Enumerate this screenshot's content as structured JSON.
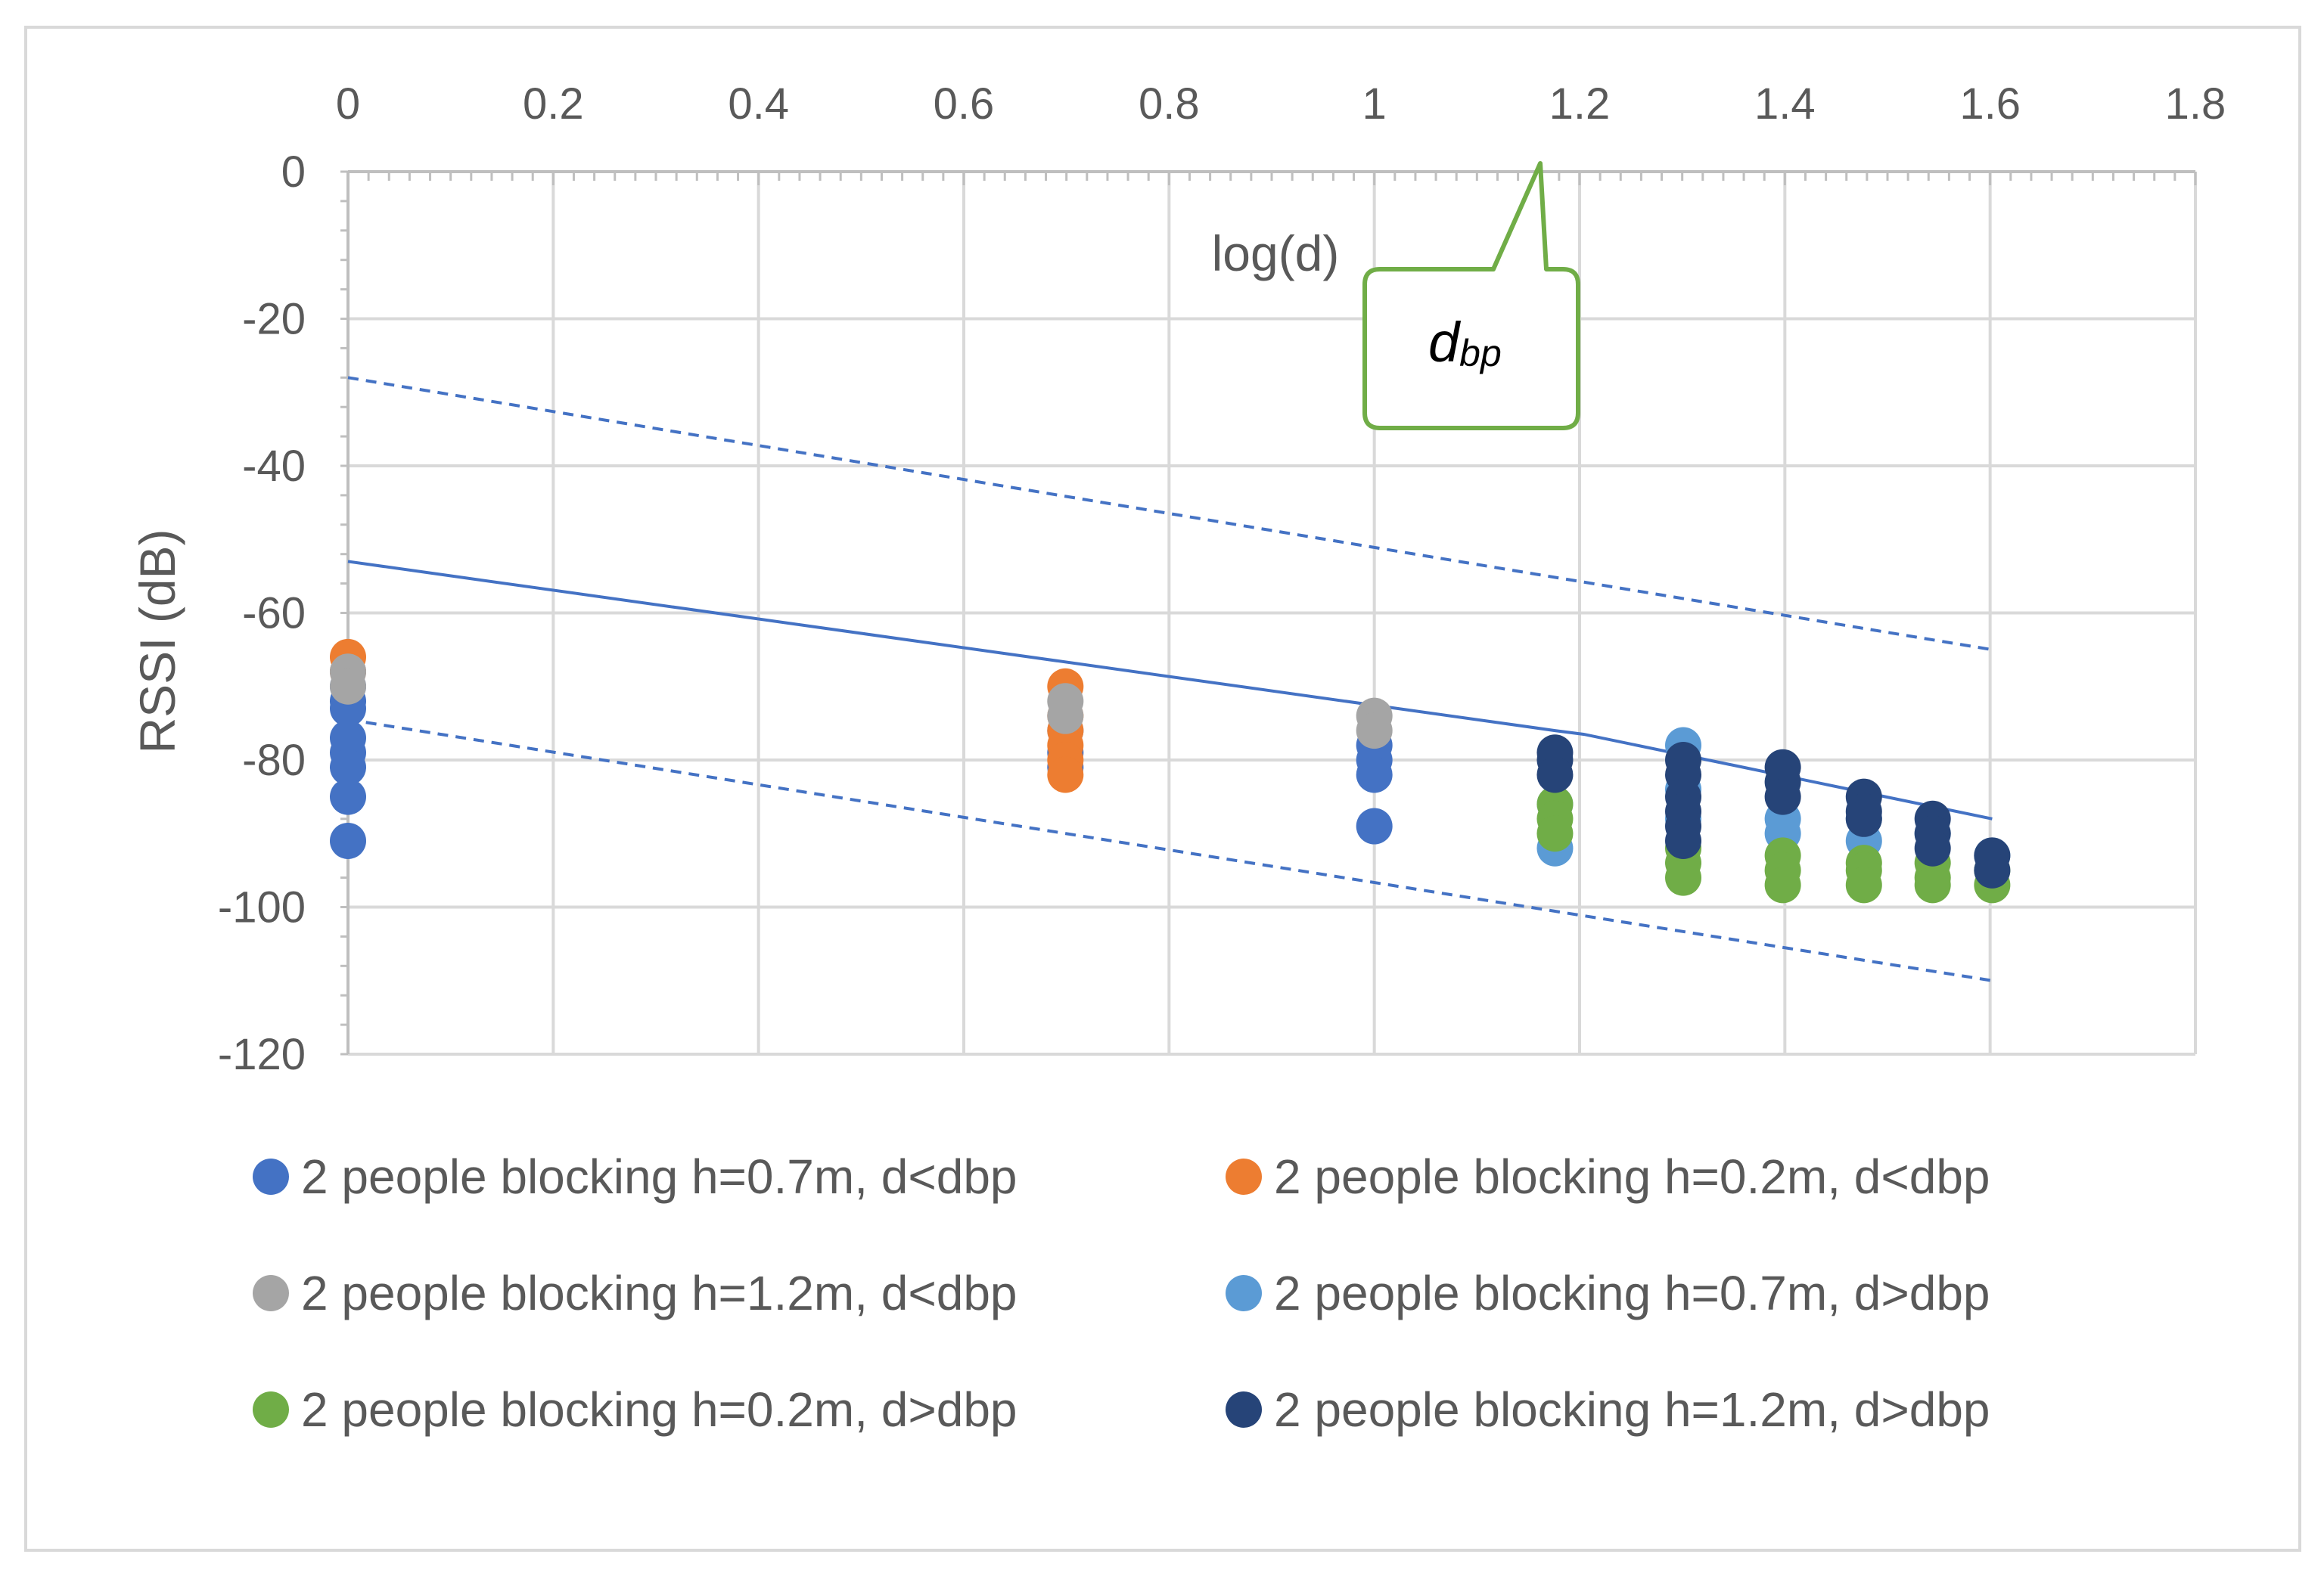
{
  "chart_data": {
    "type": "scatter",
    "xlabel": "log(d)",
    "ylabel": "RSSI (dB)",
    "xlim": [
      0,
      1.8
    ],
    "ylim": [
      -120,
      0
    ],
    "x_ticks": [
      "0",
      "0.2",
      "0.4",
      "0.6",
      "0.8",
      "1",
      "1.2",
      "1.4",
      "1.6",
      "1.8"
    ],
    "y_ticks": [
      "0",
      "-20",
      "-40",
      "-60",
      "-80",
      "-100",
      "-120"
    ],
    "x_tick_values": [
      0,
      0.2,
      0.4,
      0.6,
      0.8,
      1.0,
      1.2,
      1.4,
      1.6,
      1.8
    ],
    "y_tick_values": [
      0,
      -20,
      -40,
      -60,
      -80,
      -100,
      -120
    ],
    "x_axis_position": "top",
    "grid": true,
    "legend_position": "bottom",
    "annotation": {
      "text_main": "d",
      "text_sub": "bp",
      "x": 1.18,
      "y": 0
    },
    "series": [
      {
        "name": "2 people blocking h=0.7m, d<dbp",
        "color": "#4472c4",
        "points": [
          [
            0,
            -68
          ],
          [
            0,
            -70
          ],
          [
            0,
            -72
          ],
          [
            0,
            -73
          ],
          [
            0,
            -77
          ],
          [
            0,
            -79
          ],
          [
            0,
            -81
          ],
          [
            0,
            -85
          ],
          [
            0,
            -91
          ],
          [
            0.699,
            -76
          ],
          [
            0.699,
            -79
          ],
          [
            0.699,
            -81
          ],
          [
            1.0,
            -78
          ],
          [
            1.0,
            -80
          ],
          [
            1.0,
            -82
          ],
          [
            1.0,
            -89
          ]
        ]
      },
      {
        "name": "2 people blocking h=0.2m, d<dbp",
        "color": "#ed7d31",
        "points": [
          [
            0,
            -66
          ],
          [
            0,
            -68
          ],
          [
            0.699,
            -70
          ],
          [
            0.699,
            -74
          ],
          [
            0.699,
            -76
          ],
          [
            0.699,
            -78
          ],
          [
            0.699,
            -80
          ],
          [
            0.699,
            -82
          ]
        ]
      },
      {
        "name": "2 people blocking h=1.2m, d<dbp",
        "color": "#a5a5a5",
        "points": [
          [
            0,
            -68
          ],
          [
            0,
            -70
          ],
          [
            0.699,
            -72
          ],
          [
            0.699,
            -74
          ],
          [
            1.0,
            -74
          ],
          [
            1.0,
            -76
          ]
        ]
      },
      {
        "name": "2 people blocking h=0.7m, d>dbp",
        "color": "#5b9bd5",
        "points": [
          [
            1.176,
            -86
          ],
          [
            1.176,
            -92
          ],
          [
            1.301,
            -78
          ],
          [
            1.301,
            -84
          ],
          [
            1.301,
            -88
          ],
          [
            1.398,
            -88
          ],
          [
            1.398,
            -90
          ],
          [
            1.477,
            -88
          ],
          [
            1.477,
            -91
          ],
          [
            1.544,
            -90
          ],
          [
            1.602,
            -93
          ]
        ]
      },
      {
        "name": "2 people blocking h=0.2m, d>dbp",
        "color": "#70ad47",
        "points": [
          [
            1.176,
            -86
          ],
          [
            1.176,
            -88
          ],
          [
            1.176,
            -90
          ],
          [
            1.301,
            -92
          ],
          [
            1.301,
            -94
          ],
          [
            1.301,
            -96
          ],
          [
            1.398,
            -93
          ],
          [
            1.398,
            -95
          ],
          [
            1.398,
            -97
          ],
          [
            1.477,
            -94
          ],
          [
            1.477,
            -95
          ],
          [
            1.477,
            -97
          ],
          [
            1.544,
            -94
          ],
          [
            1.544,
            -96
          ],
          [
            1.544,
            -97
          ],
          [
            1.602,
            -95
          ],
          [
            1.602,
            -97
          ]
        ]
      },
      {
        "name": "2 people blocking h=1.2m, d>dbp",
        "color": "#264478",
        "points": [
          [
            1.176,
            -79
          ],
          [
            1.176,
            -80
          ],
          [
            1.176,
            -82
          ],
          [
            1.301,
            -80
          ],
          [
            1.301,
            -82
          ],
          [
            1.301,
            -85
          ],
          [
            1.301,
            -87
          ],
          [
            1.301,
            -89
          ],
          [
            1.301,
            -91
          ],
          [
            1.398,
            -81
          ],
          [
            1.398,
            -83
          ],
          [
            1.398,
            -85
          ],
          [
            1.477,
            -85
          ],
          [
            1.477,
            -87
          ],
          [
            1.477,
            -88
          ],
          [
            1.544,
            -88
          ],
          [
            1.544,
            -90
          ],
          [
            1.544,
            -92
          ],
          [
            1.602,
            -93
          ],
          [
            1.602,
            -95
          ]
        ]
      }
    ],
    "lines": [
      {
        "name": "fit",
        "style": "solid",
        "color": "#4472c4",
        "points": [
          [
            0,
            -53
          ],
          [
            1.176,
            -76
          ],
          [
            1.204,
            -76.5
          ],
          [
            1.602,
            -88
          ]
        ]
      },
      {
        "name": "upper bound",
        "style": "dashed",
        "color": "#4472c4",
        "points": [
          [
            0,
            -28
          ],
          [
            1.602,
            -65
          ]
        ]
      },
      {
        "name": "lower bound",
        "style": "dashed",
        "color": "#4472c4",
        "points": [
          [
            0,
            -74.5
          ],
          [
            1.602,
            -110
          ]
        ]
      }
    ]
  }
}
